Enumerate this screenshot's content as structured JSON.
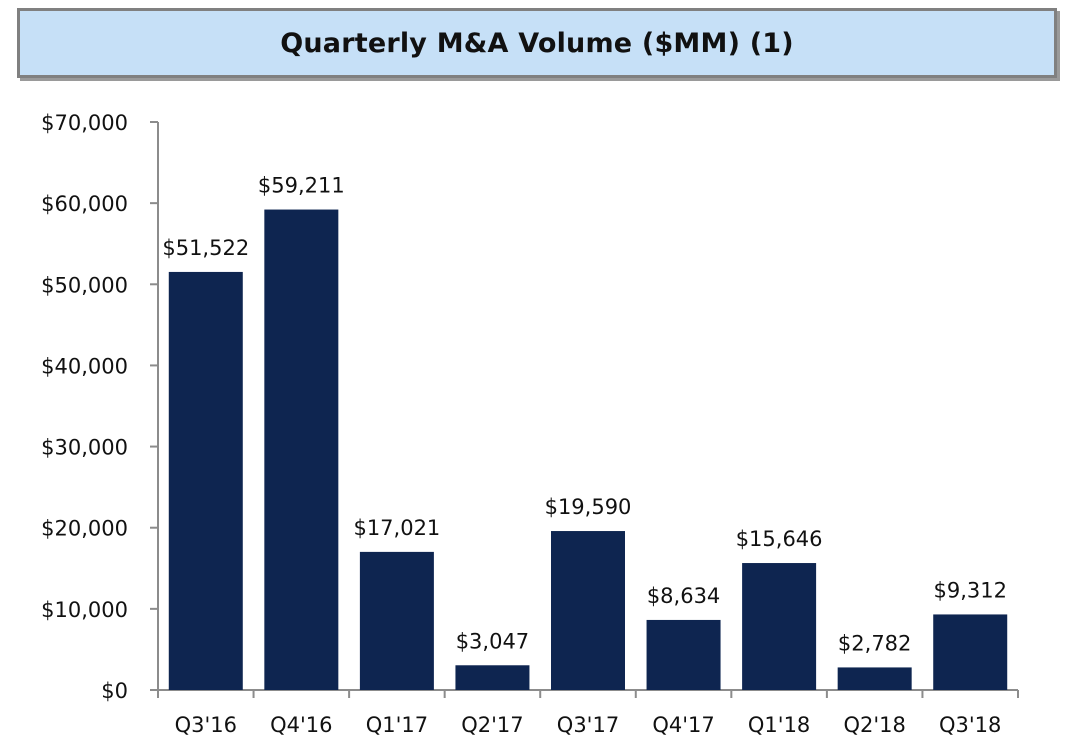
{
  "chart_data": {
    "type": "bar",
    "title": "Quarterly M&A Volume ($MM) (1)",
    "categories": [
      "Q3'16",
      "Q4'16",
      "Q1'17",
      "Q2'17",
      "Q3'17",
      "Q4'17",
      "Q1'18",
      "Q2'18",
      "Q3'18"
    ],
    "values": [
      51522,
      59211,
      17021,
      3047,
      19590,
      8634,
      15646,
      2782,
      9312
    ],
    "data_labels": [
      "$51,522",
      "$59,211",
      "$17,021",
      "$3,047",
      "$19,590",
      "$8,634",
      "$15,646",
      "$2,782",
      "$9,312"
    ],
    "y_ticks": [
      0,
      10000,
      20000,
      30000,
      40000,
      50000,
      60000,
      70000
    ],
    "y_tick_labels": [
      "$0",
      "$10,000",
      "$20,000",
      "$30,000",
      "$40,000",
      "$50,000",
      "$60,000",
      "$70,000"
    ],
    "ylim": [
      0,
      70000
    ],
    "xlabel": "",
    "ylabel": "",
    "grid": false,
    "legend": "none",
    "colors": {
      "bar": "#0e2550",
      "axis": "#8c8c8c",
      "title_background": "#c6e0f7",
      "title_border": "#808080"
    }
  }
}
